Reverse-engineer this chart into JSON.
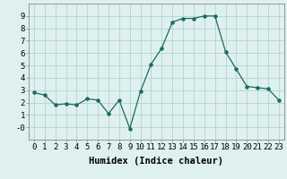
{
  "x": [
    0,
    1,
    2,
    3,
    4,
    5,
    6,
    7,
    8,
    9,
    10,
    11,
    12,
    13,
    14,
    15,
    16,
    17,
    18,
    19,
    20,
    21,
    22,
    23
  ],
  "y": [
    2.8,
    2.6,
    1.8,
    1.9,
    1.8,
    2.3,
    2.2,
    1.1,
    2.2,
    -0.1,
    2.9,
    5.1,
    6.4,
    8.5,
    8.8,
    8.8,
    9.0,
    9.0,
    6.1,
    4.7,
    3.3,
    3.2,
    3.1,
    2.2
  ],
  "line_color": "#1a6b5a",
  "marker": "o",
  "marker_size": 2.2,
  "bg_color": "#dff0f0",
  "grid_color": "#b8d8d4",
  "xlabel": "Humidex (Indice chaleur)",
  "xlim": [
    -0.5,
    23.5
  ],
  "ylim": [
    -1,
    10
  ],
  "yticks": [
    0,
    1,
    2,
    3,
    4,
    5,
    6,
    7,
    8,
    9
  ],
  "ytick_labels": [
    "-0",
    "1",
    "2",
    "3",
    "4",
    "5",
    "6",
    "7",
    "8",
    "9"
  ],
  "xticks": [
    0,
    1,
    2,
    3,
    4,
    5,
    6,
    7,
    8,
    9,
    10,
    11,
    12,
    13,
    14,
    15,
    16,
    17,
    18,
    19,
    20,
    21,
    22,
    23
  ],
  "label_fontsize": 7.5,
  "tick_fontsize": 6.5
}
